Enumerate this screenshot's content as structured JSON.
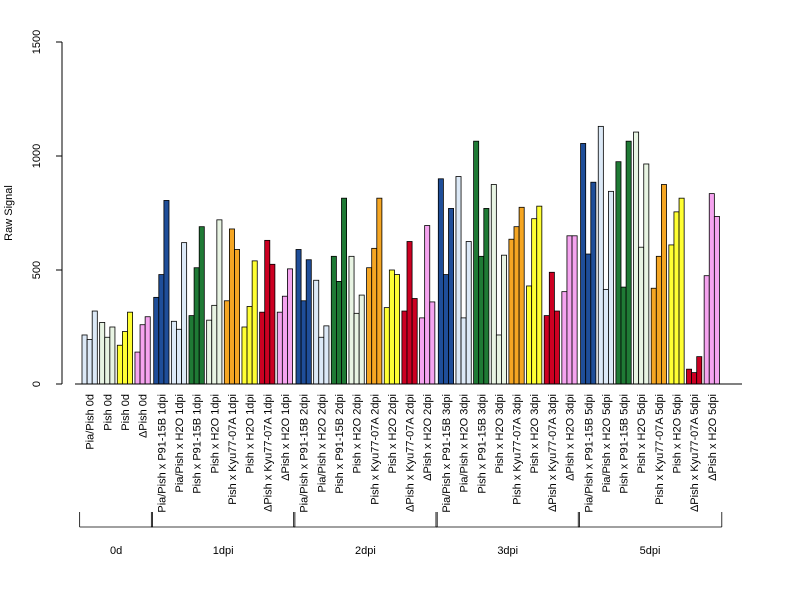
{
  "chart_data": {
    "type": "bar",
    "ylabel": "Raw Signal",
    "ylim": [
      0,
      1500
    ],
    "yticks": [
      0,
      500,
      1000,
      1500
    ],
    "categories": [
      "Pia/Pish 0d",
      "Pish 0d",
      "Pish 0d",
      "ΔPish 0d",
      "Pia/Pish x P91-15B 1dpi",
      "Pia/Pish x H2O 1dpi",
      "Pish x P91-15B 1dpi",
      "Pish x H2O 1dpi",
      "Pish x Kyu77-07A 1dpi",
      "Pish x H2O 1dpi",
      "ΔPish x Kyu77-07A 1dpi",
      "ΔPish x H2O 1dpi",
      "Pia/Pish x P91-15B 2dpi",
      "Pia/Pish x H2O 2dpi",
      "Pish x P91-15B 2dpi",
      "Pish x H2O 2dpi",
      "Pish x Kyu77-07A 2dpi",
      "Pish x H2O 2dpi",
      "ΔPish x Kyu77-07A 2dpi",
      "ΔPish x H2O 2dpi",
      "Pia/Pish x P91-15B 3dpi",
      "Pia/Pish x H2O 3dpi",
      "Pish x P91-15B 3dpi",
      "Pish x H2O 3dpi",
      "Pish x Kyu77-07A 3dpi",
      "Pish x H2O 3dpi",
      "ΔPish x Kyu77-07A 3dpi",
      "ΔPish x H2O 3dpi",
      "Pia/Pish x P91-15B 5dpi",
      "Pia/Pish x H2O 5dpi",
      "Pish x P91-15B 5dpi",
      "Pish x H2O 5dpi",
      "Pish x Kyu77-07A 5dpi",
      "Pish x H2O 5dpi",
      "ΔPish x Kyu77-07A 5dpi",
      "ΔPish x H2O 5dpi"
    ],
    "colors": [
      "#dce9f7",
      "#e8f4e3",
      "#ffff33",
      "#f5a3ef",
      "#1f4e99",
      "#dce9f7",
      "#1f7a35",
      "#e8f4e3",
      "#f5a623",
      "#ffff33",
      "#cc0022",
      "#f5a3ef",
      "#1f4e99",
      "#dce9f7",
      "#1f7a35",
      "#e8f4e3",
      "#f5a623",
      "#ffff33",
      "#cc0022",
      "#f5a3ef",
      "#1f4e99",
      "#dce9f7",
      "#1f7a35",
      "#e8f4e3",
      "#f5a623",
      "#ffff33",
      "#cc0022",
      "#f5a3ef",
      "#1f4e99",
      "#dce9f7",
      "#1f7a35",
      "#e8f4e3",
      "#f5a623",
      "#ffff33",
      "#cc0022",
      "#f5a3ef"
    ],
    "replicates": [
      [
        215,
        195,
        320
      ],
      [
        270,
        205,
        250
      ],
      [
        170,
        230,
        315
      ],
      [
        140,
        260,
        295
      ],
      [
        380,
        480,
        805
      ],
      [
        275,
        240,
        620
      ],
      [
        300,
        510,
        690
      ],
      [
        280,
        345,
        720
      ],
      [
        365,
        680,
        590
      ],
      [
        250,
        340,
        540
      ],
      [
        315,
        630,
        525
      ],
      [
        315,
        385,
        505
      ],
      [
        590,
        365,
        545
      ],
      [
        455,
        205,
        255
      ],
      [
        560,
        450,
        815
      ],
      [
        560,
        310,
        390
      ],
      [
        510,
        595,
        815
      ],
      [
        335,
        500,
        480
      ],
      [
        320,
        625,
        375
      ],
      [
        290,
        695,
        360
      ],
      [
        900,
        480,
        770
      ],
      [
        910,
        290,
        625
      ],
      [
        1065,
        560,
        770
      ],
      [
        875,
        215,
        565
      ],
      [
        635,
        690,
        775
      ],
      [
        430,
        725,
        780
      ],
      [
        300,
        490,
        320
      ],
      [
        405,
        650,
        650
      ],
      [
        1055,
        570,
        885
      ],
      [
        1130,
        415,
        845
      ],
      [
        975,
        425,
        1065
      ],
      [
        1105,
        600,
        965
      ],
      [
        420,
        560,
        875
      ],
      [
        610,
        755,
        815
      ],
      [
        65,
        50,
        120
      ],
      [
        475,
        835,
        735
      ]
    ],
    "groups": [
      {
        "label": "0d",
        "start": 0,
        "end": 3
      },
      {
        "label": "1dpi",
        "start": 4,
        "end": 11
      },
      {
        "label": "2dpi",
        "start": 12,
        "end": 19
      },
      {
        "label": "3dpi",
        "start": 20,
        "end": 27
      },
      {
        "label": "5dpi",
        "start": 28,
        "end": 35
      }
    ]
  }
}
